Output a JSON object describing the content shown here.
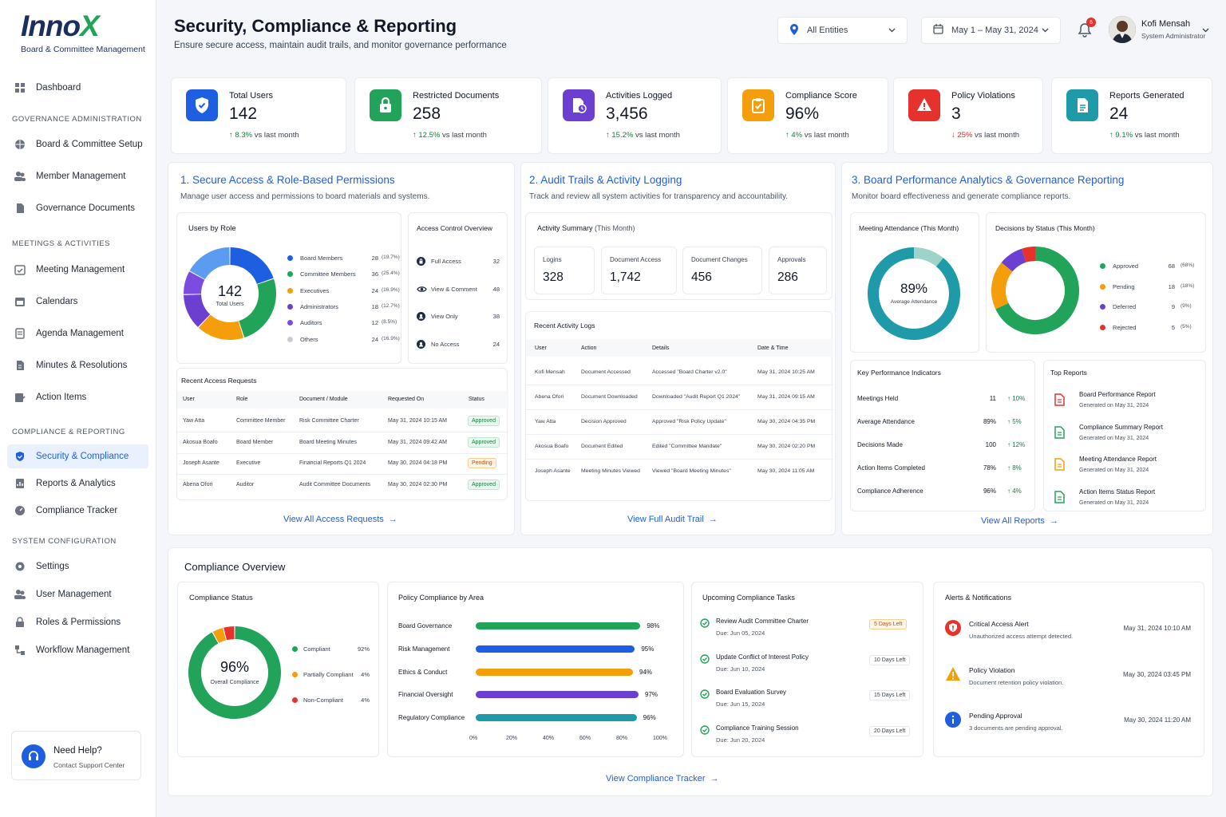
{
  "brand": {
    "logo_main": "Inno",
    "logo_x": "X",
    "tagline": "Board & Committee Management"
  },
  "sidebar": {
    "dashboard": "Dashboard",
    "sec_gov": "GOVERNANCE ADMINISTRATION",
    "board_setup": "Board & Committee Setup",
    "member_mgmt": "Member Management",
    "gov_docs": "Governance Documents",
    "sec_meet": "MEETINGS & ACTIVITIES",
    "meeting_mgmt": "Meeting Management",
    "calendars": "Calendars",
    "agenda": "Agenda Management",
    "minutes": "Minutes & Resolutions",
    "actions": "Action Items",
    "sec_comp": "COMPLIANCE & REPORTING",
    "security": "Security & Compliance",
    "reports": "Reports & Analytics",
    "tracker": "Compliance Tracker",
    "sec_sys": "SYSTEM CONFIGURATION",
    "settings": "Settings",
    "user_mgmt": "User Management",
    "roles": "Roles & Permissions",
    "workflow": "Workflow Management",
    "help_title": "Need Help?",
    "help_sub": "Contact Support Center"
  },
  "header": {
    "title": "Security, Compliance & Reporting",
    "subtitle": "Ensure secure access, maintain audit trails, and monitor governance performance",
    "entities": "All Entities",
    "date_range": "May 1 – May 31, 2024",
    "notif_count": "6",
    "user_name": "Kofi Mensah",
    "user_role": "System Administrator"
  },
  "kpis": [
    {
      "label": "Total Users",
      "value": "142",
      "trend": "8.3%",
      "suffix": "vs last month"
    },
    {
      "label": "Restricted Documents",
      "value": "258",
      "trend": "12.5%",
      "suffix": "vs last month"
    },
    {
      "label": "Activities Logged",
      "value": "3,456",
      "trend": "15.2%",
      "suffix": "vs last month"
    },
    {
      "label": "Compliance Score",
      "value": "96%",
      "trend": "4%",
      "suffix": "vs last month"
    },
    {
      "label": "Policy Violations",
      "value": "3",
      "trend": "25%",
      "suffix": "vs last month"
    },
    {
      "label": "Reports Generated",
      "value": "24",
      "trend": "9.1%",
      "suffix": "vs last month"
    }
  ],
  "colors": {
    "accent": "#1d5fe0",
    "blue": "#1d5fe0",
    "green": "#22a35a",
    "purple": "#6d3fd0",
    "orange": "#f59e0b",
    "red": "#e5322d",
    "teal": "#1f9aa8",
    "lightblue": "#5b9cf0",
    "gray": "#c9ccd3"
  },
  "s1": {
    "title": "1.  Secure Access & Role-Based Permissions",
    "sub": "Manage user access and permissions to board materials and systems.",
    "roles_title": "Users by Role",
    "donut_value": "142",
    "donut_label": "Total Users",
    "roles": [
      {
        "name": "Board Members",
        "count": "28",
        "pct": "(19.7%)",
        "value": 28
      },
      {
        "name": "Committee Members",
        "count": "36",
        "pct": "(25.4%)",
        "value": 36
      },
      {
        "name": "Executives",
        "count": "24",
        "pct": "(16.9%)",
        "value": 24
      },
      {
        "name": "Administrators",
        "count": "18",
        "pct": "(12.7%)",
        "value": 18
      },
      {
        "name": "Auditors",
        "count": "12",
        "pct": "(8.5%)",
        "value": 12
      },
      {
        "name": "Others",
        "count": "24",
        "pct": "(16.9%)",
        "value": 24
      }
    ],
    "acl_title": "Access Control Overview",
    "acl": [
      {
        "name": "Full Access",
        "value": "32"
      },
      {
        "name": "View & Comment",
        "value": "48"
      },
      {
        "name": "View Only",
        "value": "38"
      },
      {
        "name": "No Access",
        "value": "24"
      }
    ],
    "req_title": "Recent Access Requests",
    "req_headers": [
      "User",
      "Role",
      "Document / Module",
      "Requested On",
      "Status"
    ],
    "requests": [
      [
        "Yaw Atta",
        "Committee Member",
        "Risk Committee Charter",
        "May 31, 2024 10:15 AM",
        "Approved"
      ],
      [
        "Akosua Boafo",
        "Board Member",
        "Board Meeting Minutes",
        "May 31, 2024 09:42 AM",
        "Approved"
      ],
      [
        "Joseph Asante",
        "Executive",
        "Financial Reports Q1 2024",
        "May 30, 2024 04:18 PM",
        "Pending"
      ],
      [
        "Abena Ofori",
        "Auditor",
        "Audit Committee Documents",
        "May 30, 2024 02:30 PM",
        "Approved"
      ]
    ],
    "link": "View All Access Requests"
  },
  "s2": {
    "title": "2.  Audit Trails & Activity Logging",
    "sub": "Track and review all system activities for transparency and accountability.",
    "summary_title": "Activity Summary",
    "summary_title2": "(This Month)",
    "summary": [
      {
        "label": "Logins",
        "value": "328"
      },
      {
        "label": "Document Access",
        "value": "1,742"
      },
      {
        "label": "Document Changes",
        "value": "456"
      },
      {
        "label": "Approvals",
        "value": "286"
      }
    ],
    "logs_title": "Recent Activity Logs",
    "log_headers": [
      "User",
      "Action",
      "Details",
      "Date & Time"
    ],
    "logs": [
      [
        "Kofi Mensah",
        "Document Accessed",
        "Accessed \"Board Charter v2.0\"",
        "May 31, 2024 10:25 AM"
      ],
      [
        "Abena Ofori",
        "Document Downloaded",
        "Downloaded \"Audit Report Q1 2024\"",
        "May 31, 2024 09:15 AM"
      ],
      [
        "Yaw Atta",
        "Decision Approved",
        "Approved \"Risk Policy Update\"",
        "May 30, 2024 04:35 PM"
      ],
      [
        "Akosua Boafo",
        "Document Edited",
        "Edited \"Committee Mandate\"",
        "May 30, 2024 02:20 PM"
      ],
      [
        "Joseph Asante",
        "Meeting Minutes Viewed",
        "Viewed \"Board Meeting Minutes\"",
        "May 30, 2024 11:05 AM"
      ]
    ],
    "link": "View Full Audit Trail"
  },
  "s3": {
    "title": "3.  Board Performance Analytics & Governance Reporting",
    "sub": "Monitor board effectiveness and generate compliance reports.",
    "att_title": "Meeting Attendance (This Month)",
    "att_value": "89%",
    "att_label": "Average Attendance",
    "att_pct": 89,
    "dec_title": "Decisions by Status (This Month)",
    "decisions": [
      {
        "name": "Approved",
        "count": "68",
        "pct": "(68%)",
        "value": 68
      },
      {
        "name": "Pending",
        "count": "18",
        "pct": "(18%)",
        "value": 18
      },
      {
        "name": "Deferred",
        "count": "9",
        "pct": "(9%)",
        "value": 9
      },
      {
        "name": "Rejected",
        "count": "5",
        "pct": "(5%)",
        "value": 5
      }
    ],
    "kpi_title": "Key Performance Indicators",
    "kpis": [
      {
        "name": "Meetings Held",
        "value": "11",
        "trend": "10%"
      },
      {
        "name": "Average Attendance",
        "value": "89%",
        "trend": "5%"
      },
      {
        "name": "Decisions Made",
        "value": "100",
        "trend": "12%"
      },
      {
        "name": "Action Items Completed",
        "value": "78%",
        "trend": "8%"
      },
      {
        "name": "Compliance Adherence",
        "value": "96%",
        "trend": "4%"
      }
    ],
    "reports_title": "Top Reports",
    "reports": [
      {
        "name": "Board Performance Report",
        "date": "Generated on May 31, 2024"
      },
      {
        "name": "Compliance Summary Report",
        "date": "Generated on May 31, 2024"
      },
      {
        "name": "Meeting Attendance Report",
        "date": "Generated on May 31, 2024"
      },
      {
        "name": "Action Items Status Report",
        "date": "Generated on May 31, 2024"
      }
    ],
    "link": "View All Reports"
  },
  "co": {
    "title": "Compliance Overview",
    "status_title": "Compliance Status",
    "donut_value": "96%",
    "donut_label": "Overall Compliance",
    "status": [
      {
        "name": "Compliant",
        "pct": "92%",
        "value": 92
      },
      {
        "name": "Partially Compliant",
        "pct": "4%",
        "value": 4
      },
      {
        "name": "Non-Compliant",
        "pct": "4%",
        "value": 4
      }
    ],
    "policy_title": "Policy Compliance by Area",
    "policy": [
      {
        "name": "Board Governance",
        "pct": "98%",
        "value": 98
      },
      {
        "name": "Risk Management",
        "pct": "95%",
        "value": 95
      },
      {
        "name": "Ethics & Conduct",
        "pct": "94%",
        "value": 94
      },
      {
        "name": "Financial Oversight",
        "pct": "97%",
        "value": 97
      },
      {
        "name": "Regulatory Compliance",
        "pct": "96%",
        "value": 96
      }
    ],
    "axis": [
      "0%",
      "20%",
      "40%",
      "60%",
      "80%",
      "100%"
    ],
    "tasks_title": "Upcoming Compliance Tasks",
    "tasks": [
      {
        "name": "Review Audit Committee Charter",
        "due": "Due: Jun 05, 2024",
        "left": "5 Days Left"
      },
      {
        "name": "Update Conflict of Interest Policy",
        "due": "Due: Jun 10, 2024",
        "left": "10 Days Left"
      },
      {
        "name": "Board Evaluation Survey",
        "due": "Due: Jun 15, 2024",
        "left": "15 Days Left"
      },
      {
        "name": "Compliance Training Session",
        "due": "Due: Jun 20, 2024",
        "left": "20 Days Left"
      }
    ],
    "alerts_title": "Alerts & Notifications",
    "alerts": [
      {
        "name": "Critical Access Alert",
        "desc": "Unauthorized access attempt detected.",
        "time": "May 31, 2024 10:10 AM"
      },
      {
        "name": "Policy Violation",
        "desc": "Document retention policy violation.",
        "time": "May 30, 2024 03:45 PM"
      },
      {
        "name": "Pending Approval",
        "desc": "3 documents are pending approval.",
        "time": "May 30, 2024 11:20 AM"
      }
    ],
    "link": "View Compliance Tracker"
  }
}
